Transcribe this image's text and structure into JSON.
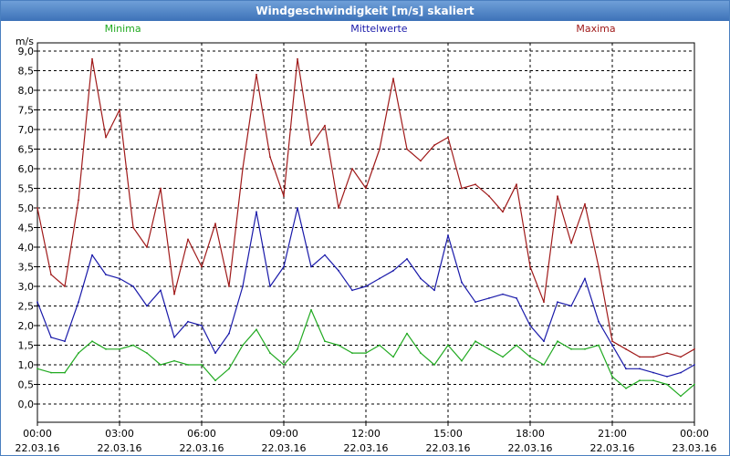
{
  "window": {
    "title": "Windgeschwindigkeit [m/s] skaliert"
  },
  "chart_data": {
    "type": "line",
    "title": "Windgeschwindigkeit [m/s] skaliert",
    "ylabel": "m/s",
    "ylim": [
      0,
      9
    ],
    "ytick_labels": [
      "0,0",
      "0,5",
      "1,0",
      "1,5",
      "2,0",
      "2,5",
      "3,0",
      "3,5",
      "4,0",
      "4,5",
      "5,0",
      "5,5",
      "6,0",
      "6,5",
      "7,0",
      "7,5",
      "8,0",
      "8,5",
      "9,0"
    ],
    "xlim_hours": [
      0,
      24
    ],
    "xtick_times": [
      "00:00",
      "03:00",
      "06:00",
      "09:00",
      "12:00",
      "15:00",
      "18:00",
      "21:00",
      "00:00"
    ],
    "xtick_dates": [
      "22.03.16",
      "22.03.16",
      "22.03.16",
      "22.03.16",
      "22.03.16",
      "22.03.16",
      "22.03.16",
      "22.03.16",
      "23.03.16"
    ],
    "grid": true,
    "legend_placement": "top",
    "series": [
      {
        "name": "Minima",
        "color": "#22aa22",
        "x": [
          0,
          0.5,
          1,
          1.5,
          2,
          2.5,
          3,
          3.5,
          4,
          4.5,
          5,
          5.5,
          6,
          6.5,
          7,
          7.5,
          8,
          8.5,
          9,
          9.5,
          10,
          10.5,
          11,
          11.5,
          12,
          12.5,
          13,
          13.5,
          14,
          14.5,
          15,
          15.5,
          16,
          16.5,
          17,
          17.5,
          18,
          18.5,
          19,
          19.5,
          20,
          20.5,
          21,
          21.5,
          22,
          22.5,
          23,
          23.5,
          24
        ],
        "y": [
          0.9,
          0.8,
          0.8,
          1.3,
          1.6,
          1.4,
          1.4,
          1.5,
          1.3,
          1.0,
          1.1,
          1.0,
          1.0,
          0.6,
          0.9,
          1.5,
          1.9,
          1.3,
          1.0,
          1.4,
          2.4,
          1.6,
          1.5,
          1.3,
          1.3,
          1.5,
          1.2,
          1.8,
          1.3,
          1.0,
          1.5,
          1.1,
          1.6,
          1.4,
          1.2,
          1.5,
          1.2,
          1.0,
          1.6,
          1.4,
          1.4,
          1.5,
          0.7,
          0.4,
          0.6,
          0.6,
          0.5,
          0.2,
          0.5
        ]
      },
      {
        "name": "Mittelwerte",
        "color": "#1a1aaa",
        "x": [
          0,
          0.5,
          1,
          1.5,
          2,
          2.5,
          3,
          3.5,
          4,
          4.5,
          5,
          5.5,
          6,
          6.5,
          7,
          7.5,
          8,
          8.5,
          9,
          9.5,
          10,
          10.5,
          11,
          11.5,
          12,
          12.5,
          13,
          13.5,
          14,
          14.5,
          15,
          15.5,
          16,
          16.5,
          17,
          17.5,
          18,
          18.5,
          19,
          19.5,
          20,
          20.5,
          21,
          21.5,
          22,
          22.5,
          23,
          23.5,
          24
        ],
        "y": [
          2.6,
          1.7,
          1.6,
          2.6,
          3.8,
          3.3,
          3.2,
          3.0,
          2.5,
          2.9,
          1.7,
          2.1,
          2.0,
          1.3,
          1.8,
          3.0,
          4.9,
          3.0,
          3.5,
          5.0,
          3.5,
          3.8,
          3.4,
          2.9,
          3.0,
          3.2,
          3.4,
          3.7,
          3.2,
          2.9,
          4.3,
          3.1,
          2.6,
          2.7,
          2.8,
          2.7,
          2.0,
          1.6,
          2.6,
          2.5,
          3.2,
          2.1,
          1.5,
          0.9,
          0.9,
          0.8,
          0.7,
          0.8,
          1.0
        ]
      },
      {
        "name": "Maxima",
        "color": "#a01a1a",
        "x": [
          0,
          0.5,
          1,
          1.5,
          2,
          2.5,
          3,
          3.5,
          4,
          4.5,
          5,
          5.5,
          6,
          6.5,
          7,
          7.5,
          8,
          8.5,
          9,
          9.5,
          10,
          10.5,
          11,
          11.5,
          12,
          12.5,
          13,
          13.5,
          14,
          14.5,
          15,
          15.5,
          16,
          16.5,
          17,
          17.5,
          18,
          18.5,
          19,
          19.5,
          20,
          20.5,
          21,
          21.5,
          22,
          22.5,
          23,
          23.5,
          24
        ],
        "y": [
          5.0,
          3.3,
          3.0,
          5.2,
          8.8,
          6.8,
          7.5,
          4.5,
          4.0,
          5.5,
          2.8,
          4.2,
          3.5,
          4.6,
          3.0,
          6.0,
          8.4,
          6.3,
          5.3,
          8.8,
          6.6,
          7.1,
          5.0,
          6.0,
          5.5,
          6.5,
          8.3,
          6.5,
          6.2,
          6.6,
          6.8,
          5.5,
          5.6,
          5.3,
          4.9,
          5.6,
          3.5,
          2.6,
          5.3,
          4.1,
          5.1,
          3.5,
          1.6,
          1.4,
          1.2,
          1.2,
          1.3,
          1.2,
          1.4
        ]
      }
    ]
  }
}
